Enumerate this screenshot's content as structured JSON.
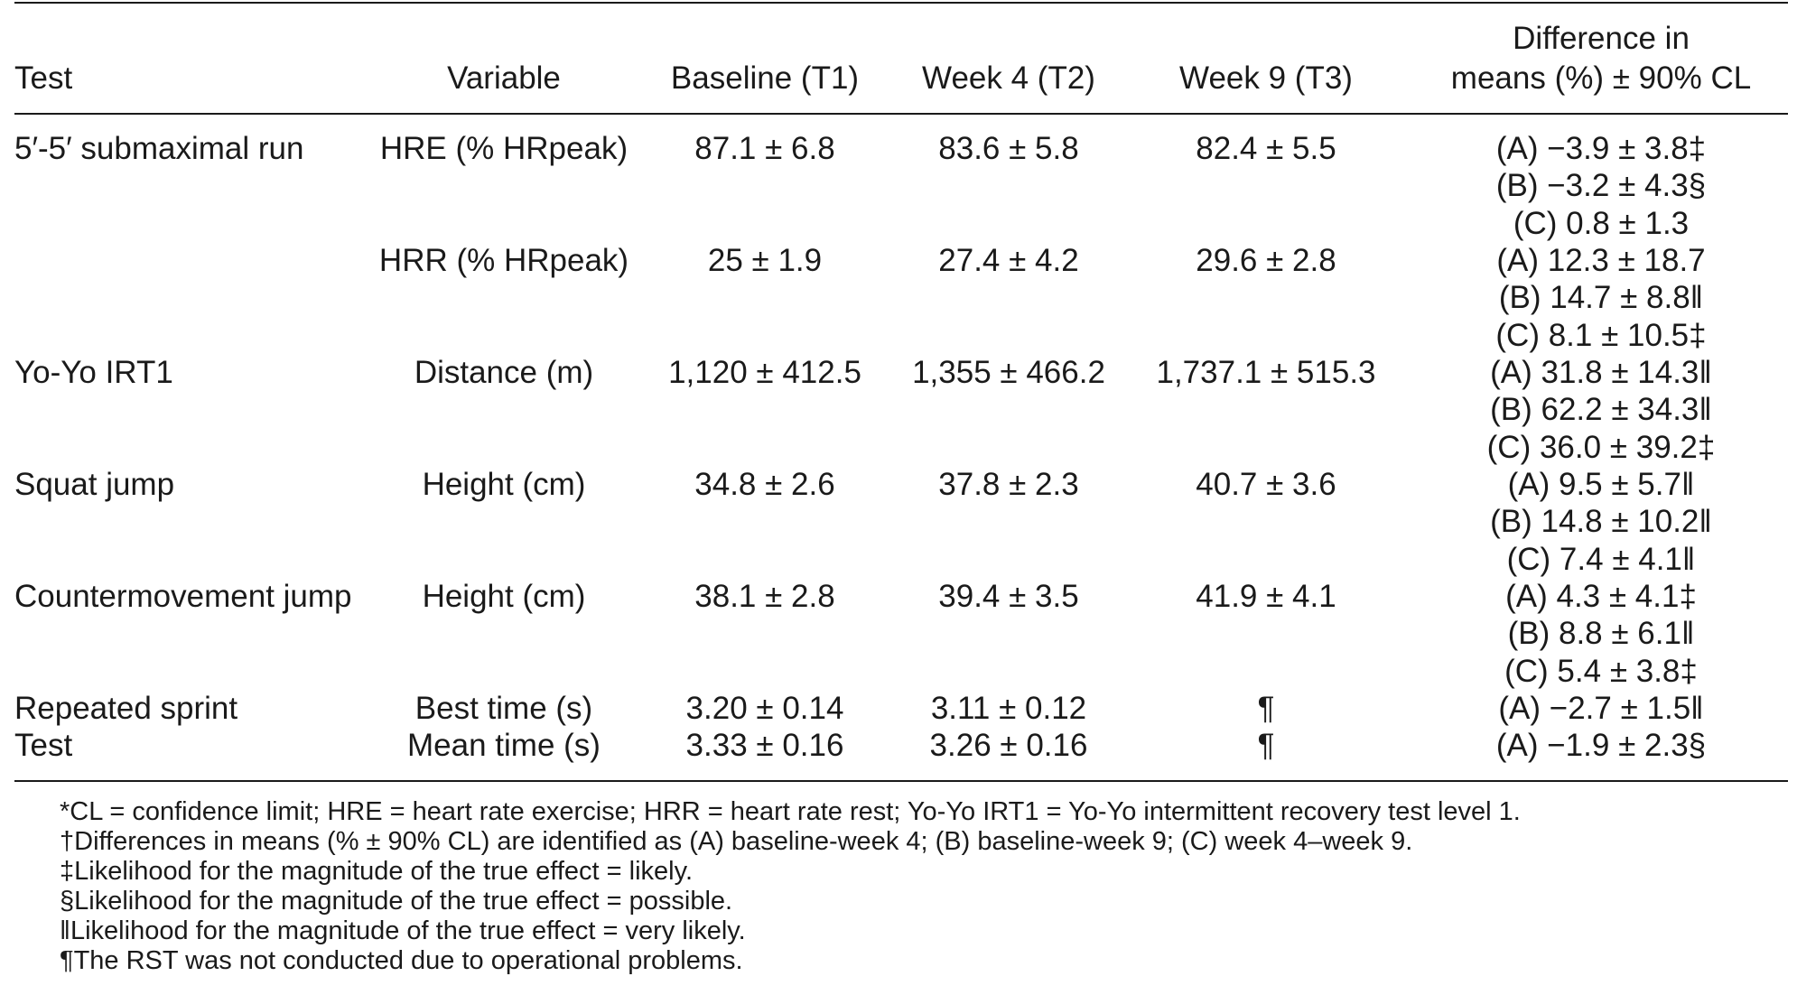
{
  "table": {
    "headers": {
      "test": "Test",
      "variable": "Variable",
      "baseline": "Baseline (T1)",
      "week4": "Week 4 (T2)",
      "week9": "Week 9 (T3)",
      "diff_line1": "Difference in",
      "diff_line2": "means (%) ± 90% CL"
    },
    "test_labels": {
      "submax": "5′-5′ submaximal run",
      "yoyo": "Yo-Yo IRT1",
      "squat": "Squat jump",
      "cmj": "Countermovement jump",
      "rst_line1": "Repeated sprint",
      "rst_line2": "Test"
    },
    "rows": {
      "hre": {
        "variable": "HRE (% HRpeak)",
        "baseline": "87.1 ± 6.8",
        "week4": "83.6 ± 5.8",
        "week9": "82.4 ± 5.5",
        "diffs": [
          "(A) −3.9 ± 3.8‡",
          "(B) −3.2 ± 4.3§",
          "(C) 0.8 ± 1.3"
        ]
      },
      "hrr": {
        "variable": "HRR (% HRpeak)",
        "baseline": "25 ± 1.9",
        "week4": "27.4 ± 4.2",
        "week9": "29.6 ± 2.8",
        "diffs": [
          "(A) 12.3 ± 18.7",
          "(B) 14.7 ± 8.8‖",
          "(C) 8.1 ± 10.5‡"
        ]
      },
      "distance": {
        "variable": "Distance (m)",
        "baseline": "1,120 ± 412.5",
        "week4": "1,355 ± 466.2",
        "week9": "1,737.1 ± 515.3",
        "diffs": [
          "(A) 31.8 ± 14.3‖",
          "(B) 62.2 ± 34.3‖",
          "(C) 36.0 ± 39.2‡"
        ]
      },
      "sj": {
        "variable": "Height (cm)",
        "baseline": "34.8 ± 2.6",
        "week4": "37.8 ± 2.3",
        "week9": "40.7 ± 3.6",
        "diffs": [
          "(A) 9.5 ± 5.7‖",
          "(B) 14.8 ± 10.2‖",
          "(C) 7.4 ± 4.1‖"
        ]
      },
      "cmj": {
        "variable": "Height (cm)",
        "baseline": "38.1 ± 2.8",
        "week4": "39.4 ± 3.5",
        "week9": "41.9 ± 4.1",
        "diffs": [
          "(A) 4.3 ± 4.1‡",
          "(B) 8.8 ± 6.1‖",
          "(C) 5.4 ± 3.8‡"
        ]
      },
      "best": {
        "variable": "Best time (s)",
        "baseline": "3.20 ± 0.14",
        "week4": "3.11 ± 0.12",
        "week9": "¶",
        "diffs": [
          "(A) −2.7 ± 1.5‖"
        ]
      },
      "mean": {
        "variable": "Mean time (s)",
        "baseline": "3.33 ± 0.16",
        "week4": "3.26 ± 0.16",
        "week9": "¶",
        "diffs": [
          "(A) −1.9 ± 2.3§"
        ]
      }
    }
  },
  "footnotes": [
    "*CL = confidence limit; HRE = heart rate exercise; HRR = heart rate rest; Yo-Yo IRT1 = Yo-Yo intermittent recovery test level 1.",
    "†Differences in means (% ± 90% CL) are identified as (A) baseline-week 4; (B) baseline-week 9; (C) week 4–week 9.",
    "‡Likelihood for the magnitude of the true effect = likely.",
    "§Likelihood for the magnitude of the true effect = possible.",
    "‖Likelihood for the magnitude of the true effect = very likely.",
    "¶The RST was not conducted due to operational problems."
  ]
}
